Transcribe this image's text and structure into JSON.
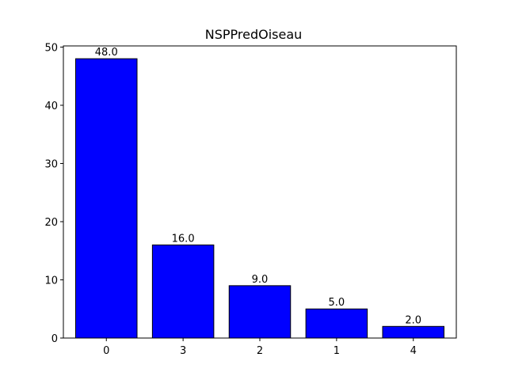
{
  "chart_data": {
    "type": "bar",
    "title": "NSPPredOiseau",
    "xlabel": "",
    "ylabel": "",
    "categories": [
      "0",
      "3",
      "2",
      "1",
      "4"
    ],
    "values": [
      48.0,
      16.0,
      9.0,
      5.0,
      2.0
    ],
    "value_labels": [
      "48.0",
      "16.0",
      "9.0",
      "5.0",
      "2.0"
    ],
    "ylim": [
      0,
      50
    ],
    "yticks": [
      0,
      10,
      20,
      30,
      40,
      50
    ],
    "ytick_labels": [
      "0",
      "10",
      "20",
      "30",
      "40",
      "50"
    ],
    "grid": false,
    "bar_color": "#0000ff",
    "bar_edge_color": "#000000"
  }
}
